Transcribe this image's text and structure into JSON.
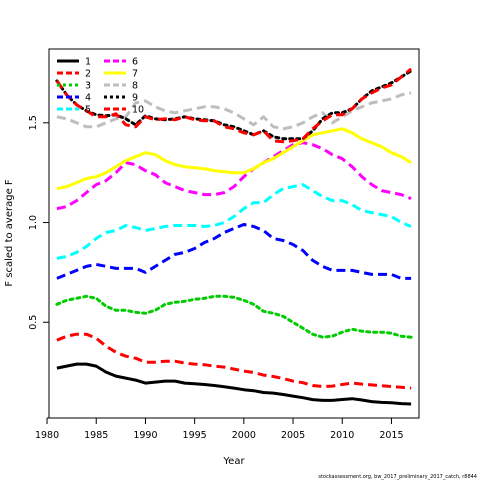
{
  "chart_data": {
    "type": "line",
    "xlabel": "Year",
    "ylabel": "F scaled to average F",
    "xlim": [
      1980.2,
      2017.8
    ],
    "ylim": [
      0.02,
      1.87
    ],
    "xticks": [
      1980,
      1985,
      1990,
      1995,
      2000,
      2005,
      2010,
      2015
    ],
    "yticks": [
      0.5,
      1.0,
      1.5
    ],
    "credit": "stockassessment.org, bw_2017_preliminary_2017_catch, r8844",
    "legend_position": "top-left",
    "x": [
      1981,
      1982,
      1983,
      1984,
      1985,
      1986,
      1987,
      1988,
      1989,
      1990,
      1991,
      1992,
      1993,
      1994,
      1995,
      1996,
      1997,
      1998,
      1999,
      2000,
      2001,
      2002,
      2003,
      2004,
      2005,
      2006,
      2007,
      2008,
      2009,
      2010,
      2011,
      2012,
      2013,
      2014,
      2015,
      2016,
      2017
    ],
    "series": [
      {
        "name": "1",
        "color": "#000000",
        "dash": "solid",
        "values": [
          0.27,
          0.28,
          0.29,
          0.29,
          0.28,
          0.25,
          0.23,
          0.22,
          0.21,
          0.195,
          0.2,
          0.205,
          0.205,
          0.195,
          0.192,
          0.188,
          0.183,
          0.177,
          0.17,
          0.162,
          0.157,
          0.148,
          0.145,
          0.138,
          0.13,
          0.122,
          0.112,
          0.108,
          0.108,
          0.113,
          0.117,
          0.11,
          0.102,
          0.098,
          0.096,
          0.092,
          0.09
        ]
      },
      {
        "name": "2",
        "color": "#ff0000",
        "dash": "dashed",
        "values": [
          0.41,
          0.43,
          0.44,
          0.44,
          0.42,
          0.38,
          0.35,
          0.33,
          0.32,
          0.3,
          0.3,
          0.305,
          0.305,
          0.295,
          0.29,
          0.287,
          0.28,
          0.275,
          0.265,
          0.255,
          0.248,
          0.235,
          0.228,
          0.218,
          0.205,
          0.197,
          0.183,
          0.178,
          0.18,
          0.188,
          0.195,
          0.19,
          0.186,
          0.182,
          0.178,
          0.174,
          0.17
        ]
      },
      {
        "name": "3",
        "color": "#00cc00",
        "dash": "dotted",
        "values": [
          0.59,
          0.61,
          0.62,
          0.63,
          0.62,
          0.58,
          0.56,
          0.56,
          0.55,
          0.545,
          0.56,
          0.59,
          0.6,
          0.605,
          0.615,
          0.62,
          0.63,
          0.63,
          0.625,
          0.61,
          0.59,
          0.555,
          0.545,
          0.53,
          0.5,
          0.47,
          0.44,
          0.425,
          0.43,
          0.45,
          0.465,
          0.455,
          0.45,
          0.45,
          0.445,
          0.43,
          0.425
        ]
      },
      {
        "name": "4",
        "color": "#0000ff",
        "dash": "dashed",
        "values": [
          0.72,
          0.74,
          0.76,
          0.78,
          0.79,
          0.78,
          0.77,
          0.77,
          0.77,
          0.75,
          0.78,
          0.81,
          0.84,
          0.85,
          0.87,
          0.9,
          0.92,
          0.95,
          0.97,
          0.99,
          0.98,
          0.96,
          0.92,
          0.91,
          0.89,
          0.86,
          0.81,
          0.78,
          0.76,
          0.76,
          0.76,
          0.75,
          0.74,
          0.74,
          0.74,
          0.72,
          0.72
        ]
      },
      {
        "name": "5",
        "color": "#00ffff",
        "dash": "dashed",
        "values": [
          0.82,
          0.83,
          0.85,
          0.88,
          0.92,
          0.95,
          0.96,
          0.985,
          0.975,
          0.96,
          0.97,
          0.98,
          0.985,
          0.985,
          0.985,
          0.98,
          0.985,
          1.0,
          1.03,
          1.07,
          1.1,
          1.1,
          1.14,
          1.17,
          1.18,
          1.19,
          1.16,
          1.13,
          1.11,
          1.11,
          1.09,
          1.06,
          1.05,
          1.04,
          1.03,
          1.0,
          0.98
        ]
      },
      {
        "name": "6",
        "color": "#ff00ff",
        "dash": "dashed",
        "values": [
          1.07,
          1.08,
          1.11,
          1.15,
          1.19,
          1.21,
          1.25,
          1.3,
          1.29,
          1.26,
          1.24,
          1.2,
          1.18,
          1.16,
          1.15,
          1.14,
          1.14,
          1.15,
          1.18,
          1.23,
          1.27,
          1.3,
          1.33,
          1.36,
          1.39,
          1.4,
          1.39,
          1.37,
          1.34,
          1.32,
          1.28,
          1.23,
          1.19,
          1.16,
          1.15,
          1.14,
          1.12
        ]
      },
      {
        "name": "7",
        "color": "#ffff00",
        "dash": "solid",
        "values": [
          1.17,
          1.18,
          1.2,
          1.22,
          1.23,
          1.25,
          1.28,
          1.31,
          1.33,
          1.35,
          1.34,
          1.31,
          1.29,
          1.28,
          1.275,
          1.27,
          1.26,
          1.255,
          1.25,
          1.25,
          1.27,
          1.3,
          1.32,
          1.35,
          1.38,
          1.41,
          1.44,
          1.45,
          1.46,
          1.47,
          1.45,
          1.42,
          1.4,
          1.38,
          1.35,
          1.33,
          1.3
        ]
      },
      {
        "name": "8",
        "color": "#bebebe",
        "dash": "dashed",
        "values": [
          1.53,
          1.52,
          1.5,
          1.48,
          1.48,
          1.5,
          1.52,
          1.53,
          1.6,
          1.61,
          1.58,
          1.56,
          1.55,
          1.56,
          1.57,
          1.58,
          1.58,
          1.57,
          1.55,
          1.52,
          1.49,
          1.53,
          1.48,
          1.47,
          1.48,
          1.5,
          1.53,
          1.55,
          1.5,
          1.53,
          1.56,
          1.58,
          1.6,
          1.61,
          1.62,
          1.64,
          1.65
        ]
      },
      {
        "name": "9",
        "color": "#000000",
        "dash": "dotted",
        "values": [
          1.71,
          1.64,
          1.59,
          1.56,
          1.54,
          1.535,
          1.54,
          1.52,
          1.49,
          1.535,
          1.52,
          1.515,
          1.52,
          1.53,
          1.52,
          1.515,
          1.51,
          1.49,
          1.48,
          1.46,
          1.44,
          1.46,
          1.43,
          1.42,
          1.42,
          1.42,
          1.46,
          1.52,
          1.55,
          1.55,
          1.57,
          1.62,
          1.66,
          1.68,
          1.7,
          1.73,
          1.76
        ]
      },
      {
        "name": "10",
        "color": "#ff0000",
        "dash": "dashed",
        "values": [
          1.71,
          1.64,
          1.59,
          1.56,
          1.53,
          1.53,
          1.545,
          1.49,
          1.48,
          1.53,
          1.515,
          1.52,
          1.515,
          1.53,
          1.515,
          1.51,
          1.51,
          1.48,
          1.47,
          1.45,
          1.44,
          1.46,
          1.41,
          1.405,
          1.41,
          1.42,
          1.47,
          1.51,
          1.54,
          1.54,
          1.57,
          1.62,
          1.65,
          1.675,
          1.69,
          1.73,
          1.77
        ]
      }
    ]
  }
}
